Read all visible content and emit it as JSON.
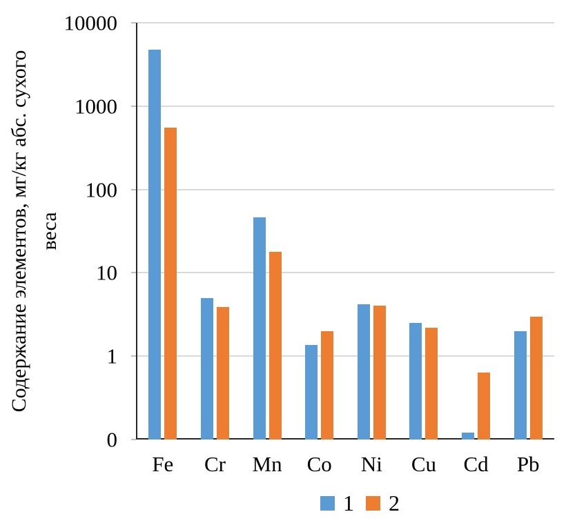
{
  "chart_data": {
    "type": "bar",
    "y_scale": "log",
    "title": "",
    "xlabel": "",
    "ylabel": "Содержание элементов, мг/кг абс. сухого веса",
    "ylabel_line1": "Содержание элементов, мг/кг абс. сухого",
    "ylabel_line2": "веса",
    "categories": [
      "Fe",
      "Cr",
      "Mn",
      "Co",
      "Ni",
      "Cu",
      "Cd",
      "Pb"
    ],
    "series": [
      {
        "name": "1",
        "color": "#5B9BD5",
        "values": [
          4800,
          5.0,
          46,
          1.35,
          4.2,
          2.5,
          0.12,
          2.0
        ]
      },
      {
        "name": "2",
        "color": "#ED7D31",
        "values": [
          550,
          3.9,
          18,
          2.0,
          4.0,
          2.2,
          0.63,
          3.0
        ]
      }
    ],
    "y_ticks": [
      {
        "label": "10000",
        "value": 10000
      },
      {
        "label": "1000",
        "value": 1000
      },
      {
        "label": "100",
        "value": 100
      },
      {
        "label": "10",
        "value": 10
      },
      {
        "label": "1",
        "value": 1
      },
      {
        "label": "0",
        "value": 0.1
      }
    ],
    "y_min": 0.1,
    "y_max": 10000,
    "grid": true,
    "legend_position": "bottom",
    "colors": {
      "gridline": "#D9D9D9",
      "tick": "#BFBFBF",
      "axis": "#262626",
      "text": "#000000"
    }
  }
}
